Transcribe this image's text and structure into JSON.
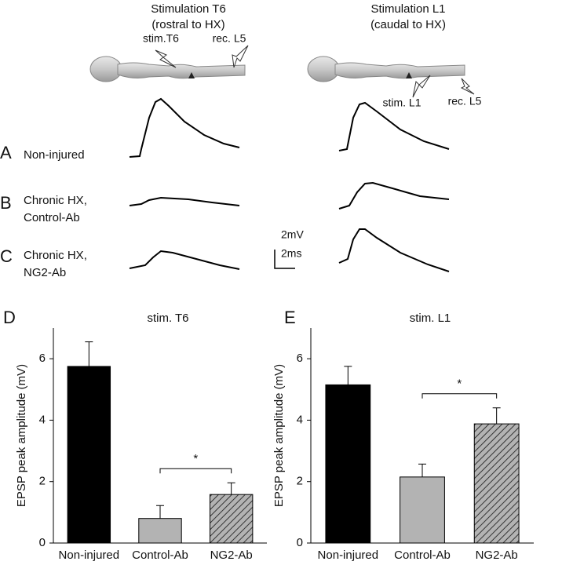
{
  "figure": {
    "left_title": [
      "Stimulation T6",
      "(rostral to HX)"
    ],
    "right_title": [
      "Stimulation L1",
      "(caudal to HX)"
    ],
    "left_labels": [
      "stim.T6",
      "rec. L5"
    ],
    "right_labels": [
      "stim. L1",
      "rec. L5"
    ],
    "rows": [
      {
        "letter": "A",
        "lines": [
          "Non-injured"
        ]
      },
      {
        "letter": "B",
        "lines": [
          "Chronic HX,",
          "Control-Ab"
        ]
      },
      {
        "letter": "C",
        "lines": [
          "Chronic HX,",
          "NG2-Ab"
        ]
      }
    ],
    "scale": [
      "2mV",
      "2ms"
    ]
  },
  "chart_data": [
    {
      "type": "bar",
      "panel": "D",
      "title": "stim. T6",
      "y_label": "EPSP peak amplitude (mV)",
      "categories": [
        "Non-injured",
        "Control-Ab",
        "NG2-Ab"
      ],
      "values": [
        5.75,
        0.8,
        1.58
      ],
      "errors": [
        0.8,
        0.42,
        0.38
      ],
      "colors": [
        "#000000",
        "#b3b3b3",
        "#b3b3b3"
      ],
      "hatched": [
        false,
        false,
        true
      ],
      "ylim": [
        0,
        7
      ],
      "yticks": [
        0,
        2,
        4,
        6
      ],
      "significance": {
        "between": [
          1,
          2
        ],
        "label": "*"
      }
    },
    {
      "type": "bar",
      "panel": "E",
      "title": "stim. L1",
      "y_label": "EPSP peak amplitude (mV)",
      "categories": [
        "Non-injured",
        "Control-Ab",
        "NG2-Ab"
      ],
      "values": [
        5.15,
        2.15,
        3.88
      ],
      "errors": [
        0.6,
        0.42,
        0.52
      ],
      "colors": [
        "#000000",
        "#b3b3b3",
        "#b3b3b3"
      ],
      "hatched": [
        false,
        false,
        true
      ],
      "ylim": [
        0,
        7
      ],
      "yticks": [
        0,
        2,
        4,
        6
      ],
      "significance": {
        "between": [
          1,
          2
        ],
        "label": "*"
      }
    }
  ]
}
